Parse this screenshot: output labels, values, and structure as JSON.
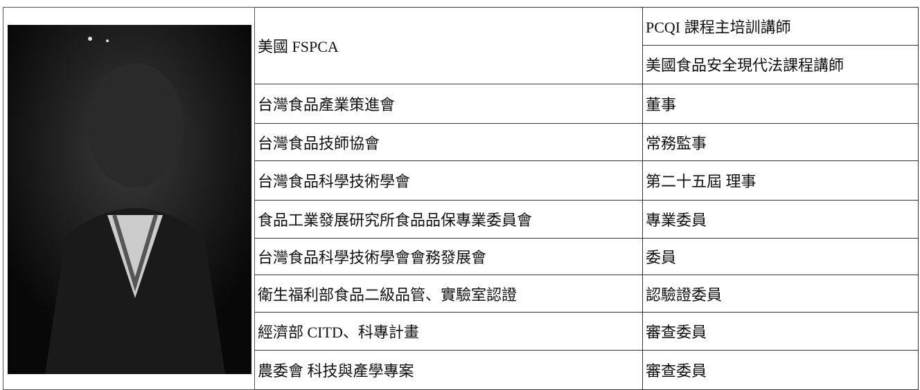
{
  "table": {
    "rows": [
      {
        "org": "美國 FSPCA",
        "roles": [
          "PCQI 課程主培訓講師",
          "美國食品安全現代法課程講師"
        ]
      },
      {
        "org": "台灣食品產業策進會",
        "roles": [
          "董事"
        ]
      },
      {
        "org": "台灣食品技師協會",
        "roles": [
          "常務監事"
        ]
      },
      {
        "org": "台灣食品科學技術學會",
        "roles": [
          "第二十五屆 理事"
        ]
      },
      {
        "org": "食品工業發展研究所食品品保專業委員會",
        "roles": [
          "專業委員"
        ]
      },
      {
        "org": "台灣食品科學技術學會會務發展會",
        "roles": [
          "委員"
        ]
      },
      {
        "org": "衛生福利部食品二級品管、實驗室認證",
        "roles": [
          "認驗證委員"
        ]
      },
      {
        "org": "經濟部 CITD、科專計畫",
        "roles": [
          "審查委員"
        ]
      },
      {
        "org": "農委會 科技與產學專案",
        "roles": [
          "審查委員"
        ]
      }
    ]
  }
}
